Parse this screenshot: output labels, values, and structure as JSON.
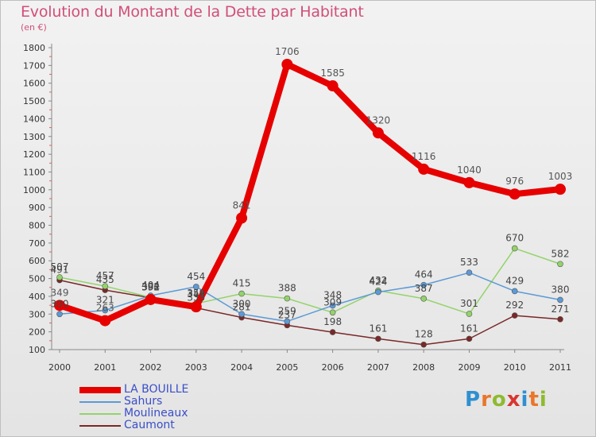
{
  "header": {
    "title": "Evolution du Montant de la Dette par Habitant",
    "subtitle": "(en €)"
  },
  "logo": {
    "text": "Proxiti",
    "letters": [
      "P",
      "r",
      "o",
      "x",
      "i",
      "t",
      "i"
    ],
    "colors": [
      "#2f8fd0",
      "#e9772a",
      "#8dbb2f",
      "#d9352f",
      "#2f8fd0",
      "#e9772a",
      "#8dbb2f"
    ]
  },
  "chart_data": {
    "type": "line",
    "title": "Evolution du Montant de la Dette par Habitant",
    "subtitle": "(en €)",
    "x": [
      "2000",
      "2001",
      "2002",
      "2003",
      "2004",
      "2005",
      "2006",
      "2007",
      "2008",
      "2009",
      "2010",
      "2011"
    ],
    "ylim": [
      100,
      1800
    ],
    "yticks": [
      100,
      200,
      300,
      400,
      500,
      600,
      700,
      800,
      900,
      1000,
      1100,
      1200,
      1300,
      1400,
      1500,
      1600,
      1700,
      1800
    ],
    "grid": false,
    "legend_position": "bottom-left",
    "series": [
      {
        "name": "LA BOUILLE",
        "color": "#e60000",
        "width": 8,
        "marker": 7,
        "labelColor": "#555555",
        "values": [
          349,
          263,
          382,
          341,
          841,
          1706,
          1585,
          1320,
          1116,
          1040,
          976,
          1003
        ]
      },
      {
        "name": "Sahurs",
        "color": "#5b9ad6",
        "width": 1.5,
        "marker": 3.5,
        "labelColor": "#444444",
        "values": [
          300,
          321,
          404,
          454,
          300,
          259,
          348,
          424,
          464,
          533,
          429,
          380
        ]
      },
      {
        "name": "Moulineaux",
        "color": "#93d36a",
        "width": 1.5,
        "marker": 3.5,
        "labelColor": "#444444",
        "values": [
          507,
          457,
          394,
          359,
          415,
          388,
          309,
          432,
          387,
          301,
          670,
          582
        ]
      },
      {
        "name": "Caumont",
        "color": "#7a2828",
        "width": 1.5,
        "marker": 3.5,
        "labelColor": "#444444",
        "values": [
          491,
          435,
          392,
          335,
          281,
          237,
          198,
          161,
          128,
          161,
          292,
          271
        ]
      }
    ]
  }
}
